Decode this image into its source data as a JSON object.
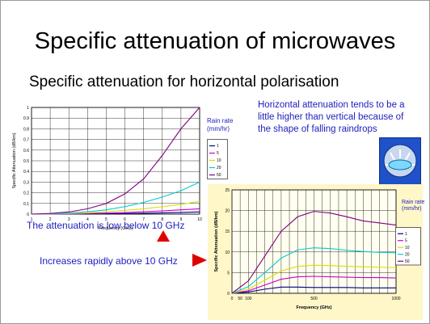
{
  "slide": {
    "title": "Specific attenuation of microwaves",
    "subtitle": "Specific attenuation for horizontal polarisation",
    "note": "Horizontal attenuation tends to be a little higher than vertical because of the shape of falling raindrops",
    "caption_low": "The attenuation is low below 10 GHz",
    "caption_rapid": "Increases rapidly above 10 GHz",
    "icon_name": "raindrop-shape-icon",
    "arrow_color": "#e00000"
  },
  "chart_data": [
    {
      "type": "line",
      "title": "",
      "xlabel": "Frequency (GHz)",
      "ylabel": "Specific Attenuation (dB/km)",
      "xlim": [
        1,
        10
      ],
      "ylim": [
        0,
        1
      ],
      "x_ticks": [
        "1",
        "2",
        "3",
        "4",
        "5",
        "6",
        "7",
        "8",
        "9",
        "10"
      ],
      "y_ticks": [
        "0",
        "0.1",
        "0.2",
        "0.3",
        "0.4",
        "0.5",
        "0.6",
        "0.7",
        "0.8",
        "0.9",
        "1"
      ],
      "grid": true,
      "legend_title": "Rain rate (mm/hr)",
      "legend_position": "right",
      "x": [
        1,
        2,
        3,
        4,
        5,
        6,
        7,
        8,
        9,
        10
      ],
      "series": [
        {
          "name": "1",
          "color": "#000080",
          "values": [
            0,
            0,
            0.001,
            0.002,
            0.003,
            0.005,
            0.008,
            0.012,
            0.016,
            0.02
          ]
        },
        {
          "name": "5",
          "color": "#cc00cc",
          "values": [
            0,
            0.001,
            0.003,
            0.006,
            0.01,
            0.015,
            0.022,
            0.03,
            0.04,
            0.05
          ]
        },
        {
          "name": "10",
          "color": "#dddd00",
          "values": [
            0,
            0.002,
            0.006,
            0.012,
            0.022,
            0.035,
            0.05,
            0.07,
            0.09,
            0.12
          ]
        },
        {
          "name": "20",
          "color": "#00cccc",
          "values": [
            0,
            0.003,
            0.01,
            0.022,
            0.04,
            0.07,
            0.11,
            0.16,
            0.22,
            0.3
          ]
        },
        {
          "name": "50",
          "color": "#800080",
          "values": [
            0,
            0.006,
            0.02,
            0.05,
            0.1,
            0.19,
            0.33,
            0.55,
            0.8,
            1.0
          ]
        }
      ]
    },
    {
      "type": "line",
      "title": "",
      "xlabel": "Frequency (GHz)",
      "ylabel": "Specific Attenuation (dB/km)",
      "xlim": [
        0,
        1000
      ],
      "ylim": [
        0,
        25
      ],
      "x_ticks": [
        "0",
        "50",
        "100",
        "500",
        "1000"
      ],
      "y_ticks": [
        "0",
        "5",
        "10",
        "15",
        "20",
        "25"
      ],
      "grid": true,
      "legend_title": "Rain rate (mm/hr)",
      "legend_position": "right",
      "x": [
        0,
        100,
        200,
        300,
        400,
        500,
        600,
        700,
        800,
        900,
        1000
      ],
      "series": [
        {
          "name": "1",
          "color": "#000080",
          "values": [
            0,
            0.3,
            1.0,
            1.5,
            1.5,
            1.4,
            1.4,
            1.4,
            1.3,
            1.3,
            1.3
          ]
        },
        {
          "name": "5",
          "color": "#cc00cc",
          "values": [
            0,
            0.6,
            2.0,
            3.4,
            4.0,
            4.1,
            4.0,
            3.9,
            3.8,
            3.8,
            3.7
          ]
        },
        {
          "name": "10",
          "color": "#dddd00",
          "values": [
            0,
            1.0,
            3.2,
            5.4,
            6.5,
            6.8,
            6.7,
            6.5,
            6.4,
            6.3,
            6.2
          ]
        },
        {
          "name": "20",
          "color": "#00cccc",
          "values": [
            0,
            1.6,
            5.0,
            8.5,
            10.5,
            11.0,
            10.8,
            10.4,
            10.1,
            9.9,
            9.8
          ]
        },
        {
          "name": "50",
          "color": "#800080",
          "values": [
            0,
            3.0,
            9.0,
            15.0,
            18.5,
            19.8,
            19.4,
            18.5,
            17.5,
            17.0,
            16.5
          ]
        }
      ]
    }
  ]
}
